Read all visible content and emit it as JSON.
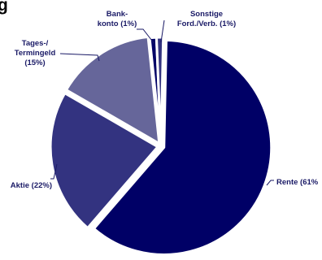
{
  "chart_data": {
    "type": "pie",
    "title": "g",
    "slices": [
      {
        "label": "Rente (61%",
        "value": 61,
        "color": "#000066"
      },
      {
        "label": "Aktie (22%)",
        "value": 22,
        "color": "#333380"
      },
      {
        "label": "Tages-/ Termingeld (15%)",
        "value": 15,
        "color": "#66669a"
      },
      {
        "label": "Bankkonto (1%)",
        "value": 1,
        "color": "#000066"
      },
      {
        "label": "Sonstige Ford./Verb. (1%)",
        "value": 1,
        "color": "#333380"
      }
    ],
    "labels": {
      "rente": "Rente (61%",
      "aktie": "Aktie (22%)",
      "tages_line1": "Tages-/",
      "tages_line2": "Termingeld",
      "tages_line3": "(15%)",
      "bank_line1": "Bank-",
      "bank_line2": "konto (1%)",
      "sonst_line1": "Sonstige",
      "sonst_line2": "Ford./Verb. (1%)"
    }
  }
}
